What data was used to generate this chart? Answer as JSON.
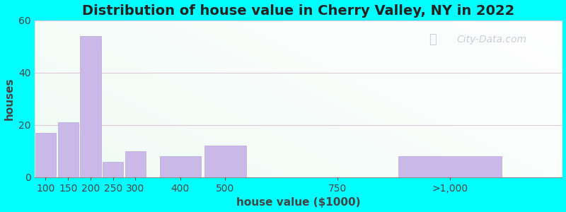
{
  "title": "Distribution of house value in Cherry Valley, NY in 2022",
  "xlabel": "house value ($1000)",
  "ylabel": "houses",
  "bar_color": "#c9b8e8",
  "bar_edge_color": "#b8a8d8",
  "background_outer": "#00ffff",
  "background_inner": "#e8f5e0",
  "grid_color": "#e0c8d8",
  "categories": [
    "100",
    "150",
    "200",
    "250",
    "300",
    "400",
    "500",
    "750",
    ">1,000"
  ],
  "x_numeric": [
    100,
    150,
    200,
    250,
    300,
    400,
    500,
    750,
    1000
  ],
  "bar_widths": [
    50,
    50,
    50,
    50,
    50,
    100,
    100,
    250,
    250
  ],
  "values": [
    17,
    21,
    54,
    6,
    10,
    8,
    12,
    0,
    8
  ],
  "ylim": [
    0,
    60
  ],
  "yticks": [
    0,
    20,
    40,
    60
  ],
  "xtick_positions": [
    100,
    150,
    200,
    250,
    300,
    400,
    500,
    750,
    1000
  ],
  "xlim": [
    75,
    1250
  ],
  "title_fontsize": 14,
  "axis_label_fontsize": 11,
  "tick_fontsize": 10,
  "watermark_text": "City-Data.com",
  "watermark_color": "#a0aabb",
  "watermark_alpha": 0.55
}
